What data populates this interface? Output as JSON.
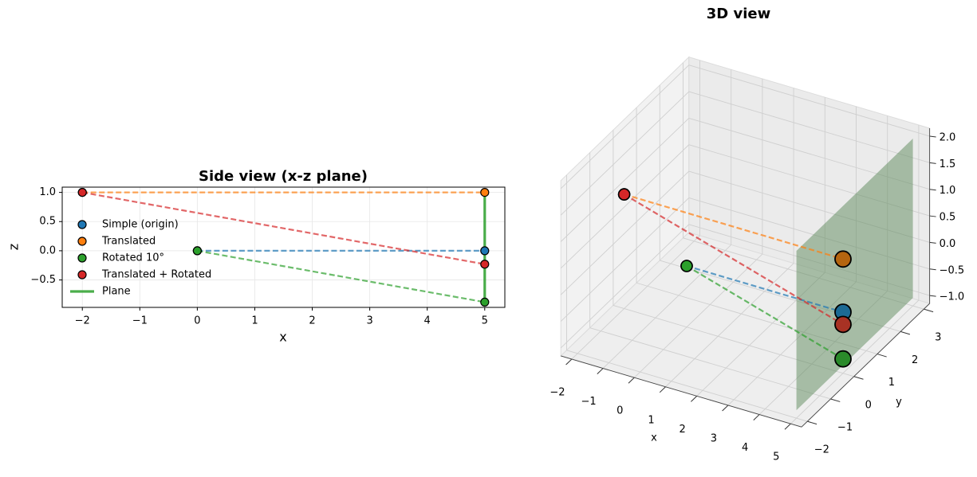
{
  "chart_data": [
    {
      "type": "line",
      "title": "Side view (x-z plane)",
      "x_label": "x",
      "y_label": "z",
      "xlim": [
        -2.35,
        5.35
      ],
      "ylim": [
        -0.97,
        1.09
      ],
      "xticks": [
        {
          "value": -2,
          "label": "−2"
        },
        {
          "value": -1,
          "label": "−1"
        },
        0,
        1,
        2,
        3,
        4,
        5
      ],
      "yticks": [
        {
          "value": -0.5,
          "label": "−0.5"
        },
        {
          "value": 0,
          "label": "0.0"
        },
        0.5,
        {
          "value": 1,
          "label": "1.0"
        }
      ],
      "grid": true,
      "legend_loc": "lower left",
      "series": [
        {
          "name": "Simple (origin)",
          "color": "#1f77b4",
          "x": [
            0,
            5
          ],
          "values": [
            0,
            0
          ],
          "linestyle": "dashed",
          "marker": "o"
        },
        {
          "name": "Translated",
          "color": "#ff7f0e",
          "x": [
            -2,
            5
          ],
          "values": [
            1,
            1
          ],
          "linestyle": "dashed",
          "marker": "o"
        },
        {
          "name": "Rotated 10°",
          "color": "#2ca02c",
          "x": [
            0,
            5
          ],
          "values": [
            0,
            -0.88
          ],
          "linestyle": "dashed",
          "marker": "o"
        },
        {
          "name": "Translated + Rotated",
          "color": "#d62728",
          "x": [
            -2,
            5
          ],
          "values": [
            1,
            -0.23
          ],
          "linestyle": "dashed",
          "marker": "o"
        },
        {
          "name": "Plane",
          "color": "#2ca02c",
          "x": [
            5,
            5
          ],
          "values": [
            -0.88,
            1
          ],
          "linestyle": "solid"
        }
      ]
    },
    {
      "type": "scatter3d",
      "title": "3D view",
      "x_label": "x",
      "y_label": "y",
      "xlim": [
        -2.35,
        5.35
      ],
      "ylim": [
        -2.25,
        3.25
      ],
      "zlim": [
        -1.15,
        2.15
      ],
      "xticks": [
        {
          "value": -2,
          "label": "−2"
        },
        {
          "value": -1,
          "label": "−1"
        },
        0,
        1,
        2,
        3,
        4,
        5
      ],
      "yticks": [
        {
          "value": -2,
          "label": "−2"
        },
        {
          "value": -1,
          "label": "−1"
        },
        0,
        1,
        2,
        3
      ],
      "zticks": [
        {
          "value": -1,
          "label": "−1.0"
        },
        {
          "value": -0.5,
          "label": "−0.5"
        },
        {
          "value": 0,
          "label": "0.0"
        },
        0.5,
        {
          "value": 1,
          "label": "1.0"
        },
        1.5,
        {
          "value": 2,
          "label": "2.0"
        }
      ],
      "grid": true,
      "plane": {
        "color": "#5e8a5b",
        "x": [
          5,
          5,
          5,
          5
        ],
        "y": [
          -2,
          3,
          3,
          -2
        ],
        "z": [
          -1,
          -1,
          2,
          2
        ]
      },
      "series": [
        {
          "color": "#1f77b4",
          "end_color": "#1c6a94",
          "x": [
            0,
            5
          ],
          "y": [
            0,
            0
          ],
          "z": [
            0,
            0
          ],
          "linestyle": "dashed"
        },
        {
          "color": "#ff7f0e",
          "end_color": "#b5650f",
          "x": [
            -2,
            5
          ],
          "y": [
            0,
            0
          ],
          "z": [
            1,
            1
          ],
          "linestyle": "dashed"
        },
        {
          "color": "#2ca02c",
          "end_color": "#2a8a2a",
          "x": [
            0,
            5
          ],
          "y": [
            0,
            0
          ],
          "z": [
            0,
            -0.88
          ],
          "linestyle": "dashed"
        },
        {
          "color": "#d62728",
          "end_color": "#a83224",
          "x": [
            -2,
            5
          ],
          "y": [
            0,
            0
          ],
          "z": [
            1,
            -0.23
          ],
          "linestyle": "dashed"
        }
      ]
    }
  ]
}
